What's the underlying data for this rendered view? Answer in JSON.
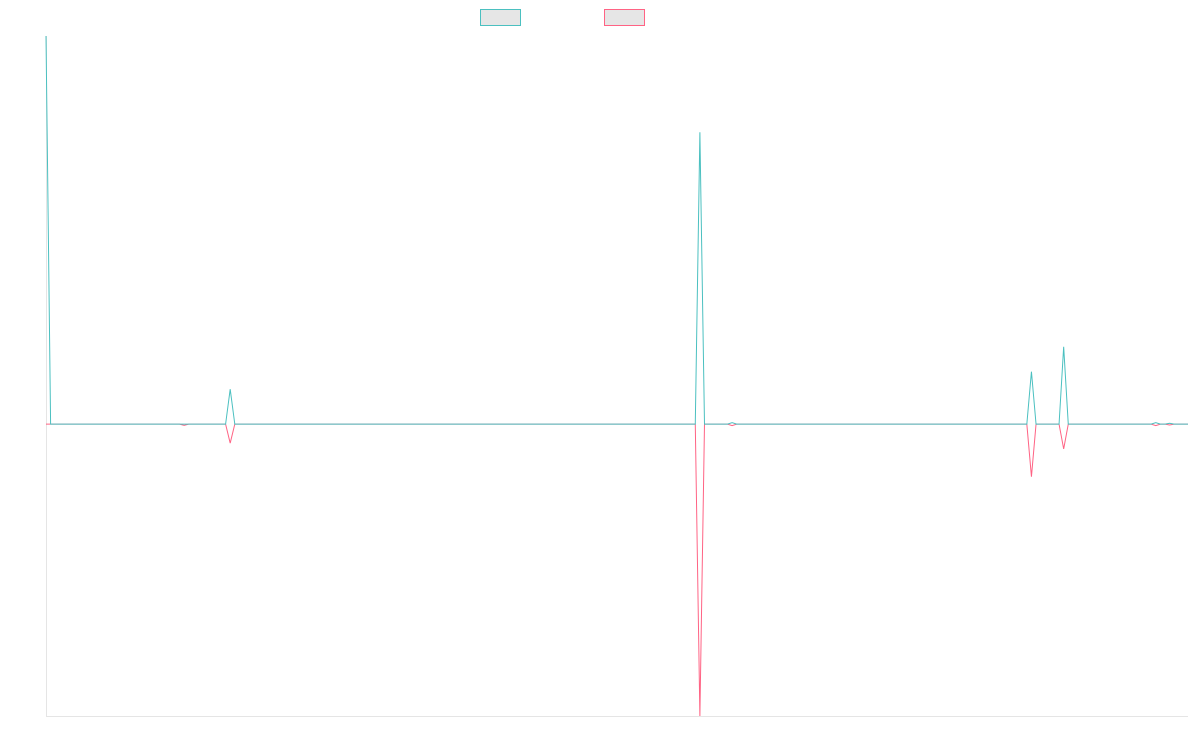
{
  "colors": {
    "series_a": "#4bc0c0",
    "series_b": "#ff6384",
    "legend_fill": "#e6e6e6",
    "axis": "#e5e5e5",
    "background": "#ffffff"
  },
  "chart_data": {
    "type": "line",
    "title": "",
    "xlabel": "",
    "ylabel": "",
    "grid": false,
    "legend_position": "top-center",
    "x_count": 249,
    "ylim": [
      -1,
      1.33
    ],
    "series": [
      {
        "color": "#4bc0c0",
        "points": [
          {
            "x": 0,
            "y": 1.33
          },
          {
            "x": 1,
            "y": 0
          },
          {
            "x": 39,
            "y": 0
          },
          {
            "x": 40,
            "y": 0.12
          },
          {
            "x": 41,
            "y": 0
          },
          {
            "x": 141,
            "y": 0
          },
          {
            "x": 142,
            "y": 1.0
          },
          {
            "x": 143,
            "y": 0
          },
          {
            "x": 148,
            "y": 0
          },
          {
            "x": 149,
            "y": 0.005
          },
          {
            "x": 150,
            "y": 0
          },
          {
            "x": 213,
            "y": 0
          },
          {
            "x": 214,
            "y": 0.18
          },
          {
            "x": 215,
            "y": 0
          },
          {
            "x": 220,
            "y": 0
          },
          {
            "x": 221,
            "y": 0.265
          },
          {
            "x": 222,
            "y": 0
          },
          {
            "x": 240,
            "y": 0
          },
          {
            "x": 241,
            "y": 0.005
          },
          {
            "x": 242,
            "y": 0
          },
          {
            "x": 243,
            "y": 0
          },
          {
            "x": 244,
            "y": 0.003
          },
          {
            "x": 245,
            "y": 0
          },
          {
            "x": 248,
            "y": 0
          }
        ]
      },
      {
        "color": "#ff6384",
        "points": [
          {
            "x": 0,
            "y": 0
          },
          {
            "x": 29,
            "y": 0
          },
          {
            "x": 30,
            "y": -0.004
          },
          {
            "x": 31,
            "y": 0
          },
          {
            "x": 39,
            "y": 0
          },
          {
            "x": 40,
            "y": -0.065
          },
          {
            "x": 41,
            "y": 0
          },
          {
            "x": 141,
            "y": 0
          },
          {
            "x": 142,
            "y": -1.0
          },
          {
            "x": 143,
            "y": 0
          },
          {
            "x": 148,
            "y": 0
          },
          {
            "x": 149,
            "y": -0.005
          },
          {
            "x": 150,
            "y": 0
          },
          {
            "x": 213,
            "y": 0
          },
          {
            "x": 214,
            "y": -0.18
          },
          {
            "x": 215,
            "y": 0
          },
          {
            "x": 220,
            "y": 0
          },
          {
            "x": 221,
            "y": -0.085
          },
          {
            "x": 222,
            "y": 0
          },
          {
            "x": 240,
            "y": 0
          },
          {
            "x": 241,
            "y": -0.005
          },
          {
            "x": 242,
            "y": 0
          },
          {
            "x": 243,
            "y": 0
          },
          {
            "x": 244,
            "y": -0.003
          },
          {
            "x": 245,
            "y": 0
          },
          {
            "x": 248,
            "y": 0
          }
        ]
      }
    ]
  }
}
